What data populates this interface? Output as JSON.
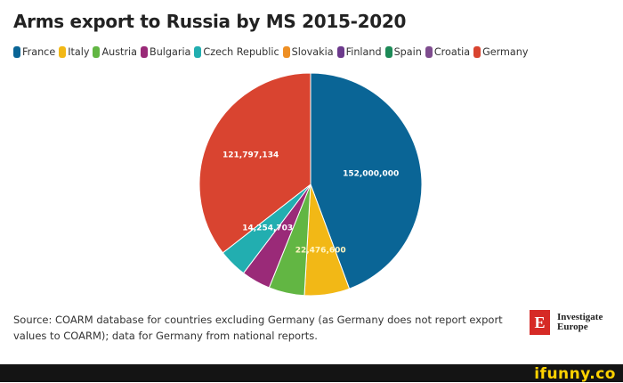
{
  "chart_data": {
    "type": "pie",
    "title": "Arms export to Russia by MS 2015-2020",
    "categories": [
      "France",
      "Italy",
      "Austria",
      "Bulgaria",
      "Czech Republic",
      "Slovakia",
      "Finland",
      "Spain",
      "Croatia",
      "Germany"
    ],
    "values": [
      152000000,
      22476600,
      17800000,
      14500000,
      14254703,
      0,
      0,
      0,
      0,
      121797134
    ],
    "colors": [
      "#0a6596",
      "#f2b816",
      "#62b643",
      "#9a2a78",
      "#22aeb0",
      "#ee8f24",
      "#6c3a8c",
      "#1d8a57",
      "#7e4c8e",
      "#d94430"
    ],
    "data_labels": [
      {
        "category": "France",
        "text": "152,000,000",
        "color": "#ffffff"
      },
      {
        "category": "Germany",
        "text": "121,797,134",
        "color": "#ffffff"
      },
      {
        "category": "Czech Republic",
        "text": "14,254,703",
        "color": "#ffffff"
      },
      {
        "category": "Italy",
        "text": "22,476,600",
        "color": "#fff5c2"
      }
    ],
    "legend_position": "top"
  },
  "source_note": "Source: COARM database for countries excluding Germany (as Germany does not report export values to COARM); data for Germany from national reports.",
  "branding": {
    "logo_letter": "E",
    "name_line1": "Investigate",
    "name_line2": "Europe"
  },
  "watermark": "ifunny.co"
}
